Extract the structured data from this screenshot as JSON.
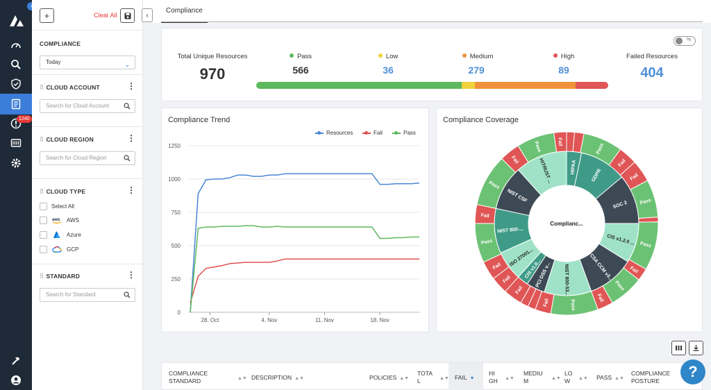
{
  "filters": {
    "clear_all": "Clear All",
    "compliance": {
      "title": "COMPLIANCE",
      "selected": "Today"
    },
    "cloud_account": {
      "title": "CLOUD ACCOUNT",
      "placeholder": "Search for Cloud Account"
    },
    "cloud_region": {
      "title": "CLOUD REGION",
      "placeholder": "Search for Cloud Region"
    },
    "cloud_type": {
      "title": "CLOUD TYPE",
      "select_all": "Select All",
      "options": [
        "AWS",
        "Azure",
        "GCP"
      ]
    },
    "standard": {
      "title": "STANDARD",
      "placeholder": "Search for Standard"
    }
  },
  "nav": {
    "alerts_badge": "1240"
  },
  "tab": {
    "label": "Compliance"
  },
  "toggle": {
    "label": "%"
  },
  "summary": {
    "total_label": "Total Unique Resources",
    "total_value": "970",
    "pass_label": "Pass",
    "pass_value": "566",
    "low_label": "Low",
    "low_value": "36",
    "medium_label": "Medium",
    "medium_value": "279",
    "high_label": "High",
    "high_value": "89",
    "failed_label": "Failed Resources",
    "failed_value": "404",
    "colors": {
      "pass": "#5cb85c",
      "low": "#f0d23c",
      "medium": "#f0923a",
      "high": "#e05555",
      "accent": "#4f8fd8"
    }
  },
  "trend": {
    "title": "Compliance Trend",
    "legend": [
      "Resources",
      "Fail",
      "Pass"
    ]
  },
  "coverage": {
    "title": "Compliance Coverage",
    "center_label": "Complianc...",
    "inner": [
      "HIPAA",
      "GDPR",
      "SOC 2",
      "CIS v1.2.0 ...",
      "CSA CCM v3....",
      "NIST 800-53...",
      "PCI DSS v...",
      "CIS v1.0...",
      "ISO 27001...",
      "NIST 800-...",
      "NIST CSF",
      "HITRUST ..."
    ],
    "outer_pass": "Pass",
    "outer_fail": "Fail"
  },
  "chart_data": {
    "type": "line",
    "title": "Compliance Trend",
    "x_ticks": [
      "28. Oct",
      "4. Nov",
      "11. Nov",
      "18. Nov"
    ],
    "y_ticks": [
      "0",
      "250",
      "500",
      "750",
      "1000",
      "1250"
    ],
    "ylim": [
      0,
      1250
    ],
    "series": [
      {
        "name": "Resources",
        "color": "#4a86d4",
        "values": [
          0,
          890,
          995,
          1000,
          1000,
          1010,
          1030,
          1030,
          1020,
          1020,
          1030,
          1030,
          1040,
          1040,
          1040,
          1040,
          1040,
          1040,
          1040,
          1040,
          1040,
          1040,
          1040,
          1040,
          960,
          960,
          965,
          965,
          965,
          970
        ]
      },
      {
        "name": "Fail",
        "color": "#e05050",
        "values": [
          70,
          270,
          330,
          340,
          350,
          365,
          370,
          375,
          375,
          375,
          375,
          385,
          400,
          400,
          400,
          400,
          400,
          400,
          400,
          400,
          400,
          400,
          400,
          400,
          400,
          400,
          400,
          400,
          400,
          400
        ]
      },
      {
        "name": "Pass",
        "color": "#5cb85c",
        "values": [
          0,
          630,
          640,
          640,
          645,
          645,
          645,
          650,
          650,
          640,
          640,
          645,
          640,
          640,
          640,
          640,
          640,
          640,
          640,
          640,
          640,
          640,
          640,
          640,
          555,
          555,
          560,
          560,
          565,
          565
        ]
      }
    ]
  },
  "table": {
    "columns": [
      "COMPLIANCE STANDARD",
      "DESCRIPTION",
      "POLICIES",
      "TOTAL",
      "FAIL",
      "HIGH",
      "MEDIUM",
      "LOW",
      "PASS",
      "COMPLIANCE POSTURE"
    ]
  }
}
